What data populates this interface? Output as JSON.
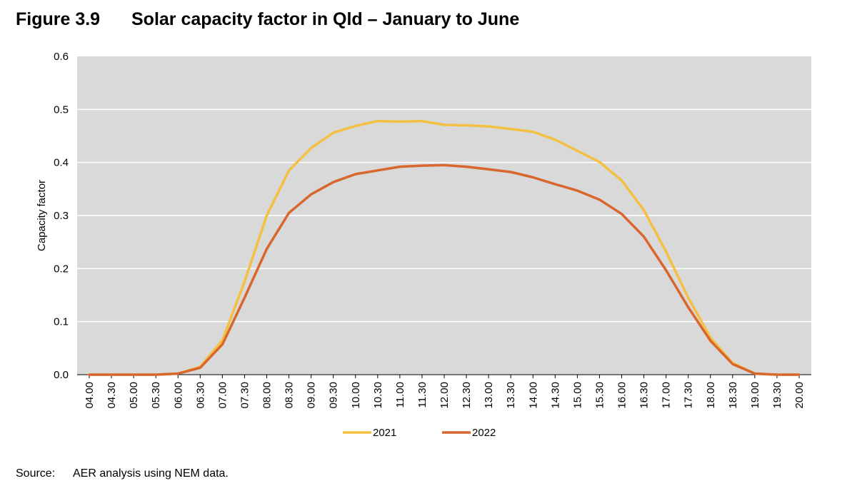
{
  "figure": {
    "number": "Figure 3.9",
    "title": "Solar capacity factor in Qld – January to June"
  },
  "source": {
    "label": "Source:",
    "text": "AER analysis using NEM data."
  },
  "colors": {
    "plot_background": "#d9d9d9",
    "gridline": "#ffffff",
    "series_2021": "#f4c042",
    "series_2022": "#d9662d"
  },
  "chart_data": {
    "type": "line",
    "title": "Solar capacity factor in Qld – January to June",
    "xlabel": "",
    "ylabel": "Capacity factor",
    "ylim": [
      0,
      0.6
    ],
    "yticks": [
      "0.0",
      "0.1",
      "0.2",
      "0.3",
      "0.4",
      "0.5",
      "0.6"
    ],
    "grid": "horizontal",
    "legend_position": "bottom-center",
    "x": [
      "04.00",
      "04.30",
      "05.00",
      "05.30",
      "06.00",
      "06.30",
      "07.00",
      "07.30",
      "08.00",
      "08.30",
      "09.00",
      "09.30",
      "10.00",
      "10.30",
      "11.00",
      "11.30",
      "12.00",
      "12.30",
      "13.00",
      "13.30",
      "14.00",
      "14.30",
      "15.00",
      "15.30",
      "16.00",
      "16.30",
      "17.00",
      "17.30",
      "18.00",
      "18.30",
      "19.00",
      "19.30",
      "20.00"
    ],
    "series": [
      {
        "name": "2021",
        "color": "#f4c042",
        "values": [
          0,
          0,
          0,
          0,
          0.002,
          0.015,
          0.065,
          0.175,
          0.3,
          0.385,
          0.427,
          0.456,
          0.469,
          0.478,
          0.477,
          0.478,
          0.471,
          0.47,
          0.468,
          0.463,
          0.458,
          0.443,
          0.422,
          0.401,
          0.366,
          0.31,
          0.232,
          0.145,
          0.07,
          0.022,
          0.002,
          0,
          0
        ]
      },
      {
        "name": "2022",
        "color": "#d9662d",
        "values": [
          0,
          0,
          0,
          0,
          0.002,
          0.013,
          0.057,
          0.145,
          0.237,
          0.305,
          0.34,
          0.363,
          0.378,
          0.385,
          0.392,
          0.394,
          0.395,
          0.392,
          0.387,
          0.382,
          0.372,
          0.359,
          0.347,
          0.33,
          0.303,
          0.26,
          0.197,
          0.127,
          0.064,
          0.02,
          0.002,
          0,
          0
        ]
      }
    ]
  }
}
